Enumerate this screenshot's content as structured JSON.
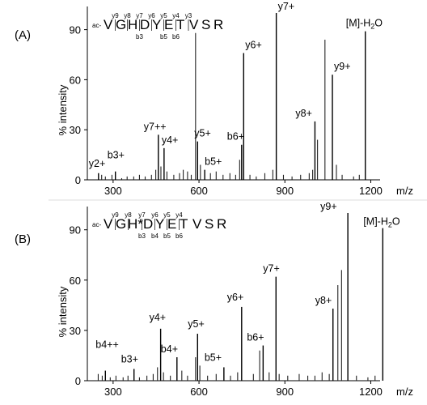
{
  "chart_data": [
    {
      "type": "bar",
      "panel_label": "(A)",
      "ylabel": "% intensity",
      "x_unit": "m/z",
      "xlim": [
        210,
        1290
      ],
      "ylim": [
        0,
        100
      ],
      "xticks": [
        300,
        600,
        900,
        1200
      ],
      "yticks": [
        0,
        30,
        60,
        90
      ],
      "sequence": {
        "prefix": "ac-",
        "residues": [
          "V",
          "G",
          "H",
          "D",
          "Y",
          "E",
          "T",
          "V",
          "S",
          "R"
        ],
        "y_ions": [
          "y9",
          "y8",
          "y7",
          "y6",
          "y5",
          "y4",
          "y3"
        ],
        "b_ions": [
          "b3",
          "b5",
          "b6"
        ]
      },
      "labeled_peaks": [
        {
          "label": "y2+",
          "mz": 249,
          "intensity": 4
        },
        {
          "label": "b3+",
          "mz": 308,
          "intensity": 5
        },
        {
          "label": "y7++",
          "mz": 458,
          "intensity": 27
        },
        {
          "label": "y4+",
          "mz": 478,
          "intensity": 19
        },
        {
          "label": "y5+",
          "mz": 595,
          "intensity": 23
        },
        {
          "label": "b5+",
          "mz": 620,
          "intensity": 6
        },
        {
          "label": "b6+",
          "mz": 749,
          "intensity": 21
        },
        {
          "label": "y6+",
          "mz": 756,
          "intensity": 76
        },
        {
          "label": "y7+",
          "mz": 870,
          "intensity": 100
        },
        {
          "label": "y8+",
          "mz": 1005,
          "intensity": 35
        },
        {
          "label": "y9+",
          "mz": 1066,
          "intensity": 63
        },
        {
          "label": "[M]-H2O",
          "mz": 1181,
          "intensity": 89
        }
      ],
      "other_peaks": [
        {
          "mz": 260,
          "intensity": 3
        },
        {
          "mz": 273,
          "intensity": 2
        },
        {
          "mz": 296,
          "intensity": 3
        },
        {
          "mz": 330,
          "intensity": 1
        },
        {
          "mz": 349,
          "intensity": 2
        },
        {
          "mz": 372,
          "intensity": 2
        },
        {
          "mz": 392,
          "intensity": 3
        },
        {
          "mz": 412,
          "intensity": 2
        },
        {
          "mz": 434,
          "intensity": 3
        },
        {
          "mz": 449,
          "intensity": 6
        },
        {
          "mz": 467,
          "intensity": 8
        },
        {
          "mz": 488,
          "intensity": 5
        },
        {
          "mz": 512,
          "intensity": 3
        },
        {
          "mz": 532,
          "intensity": 4
        },
        {
          "mz": 545,
          "intensity": 6
        },
        {
          "mz": 560,
          "intensity": 5
        },
        {
          "mz": 573,
          "intensity": 3
        },
        {
          "mz": 588,
          "intensity": 88
        },
        {
          "mz": 605,
          "intensity": 9
        },
        {
          "mz": 640,
          "intensity": 4
        },
        {
          "mz": 660,
          "intensity": 5
        },
        {
          "mz": 684,
          "intensity": 3
        },
        {
          "mz": 708,
          "intensity": 4
        },
        {
          "mz": 728,
          "intensity": 3
        },
        {
          "mz": 742,
          "intensity": 12
        },
        {
          "mz": 778,
          "intensity": 3
        },
        {
          "mz": 800,
          "intensity": 2
        },
        {
          "mz": 830,
          "intensity": 4
        },
        {
          "mz": 858,
          "intensity": 6
        },
        {
          "mz": 895,
          "intensity": 3
        },
        {
          "mz": 925,
          "intensity": 2
        },
        {
          "mz": 955,
          "intensity": 3
        },
        {
          "mz": 985,
          "intensity": 4
        },
        {
          "mz": 997,
          "intensity": 6
        },
        {
          "mz": 1014,
          "intensity": 24
        },
        {
          "mz": 1040,
          "intensity": 84
        },
        {
          "mz": 1080,
          "intensity": 9
        },
        {
          "mz": 1100,
          "intensity": 3
        },
        {
          "mz": 1140,
          "intensity": 2
        },
        {
          "mz": 1160,
          "intensity": 3
        }
      ]
    },
    {
      "type": "bar",
      "panel_label": "(B)",
      "ylabel": "% intensity",
      "x_unit": "m/z",
      "xlim": [
        210,
        1290
      ],
      "ylim": [
        0,
        100
      ],
      "xticks": [
        300,
        600,
        900,
        1200
      ],
      "yticks": [
        0,
        30,
        60,
        90
      ],
      "sequence": {
        "prefix": "ac-",
        "residues": [
          "V",
          "G",
          "H*",
          "D",
          "Y",
          "E",
          "T",
          "V",
          "S",
          "R"
        ],
        "y_ions": [
          "y9",
          "y8",
          "y7",
          "y6",
          "y5",
          "y4"
        ],
        "b_ions": [
          "b3",
          "b4",
          "b5",
          "b6"
        ]
      },
      "labeled_peaks": [
        {
          "label": "b4++",
          "mz": 273,
          "intensity": 6
        },
        {
          "label": "b3+",
          "mz": 373,
          "intensity": 7
        },
        {
          "label": "y4+",
          "mz": 466,
          "intensity": 31
        },
        {
          "label": "b4+",
          "mz": 523,
          "intensity": 14
        },
        {
          "label": "y5+",
          "mz": 595,
          "intensity": 28
        },
        {
          "label": "b5+",
          "mz": 687,
          "intensity": 8
        },
        {
          "label": "y6+",
          "mz": 749,
          "intensity": 44
        },
        {
          "label": "b6+",
          "mz": 824,
          "intensity": 21
        },
        {
          "label": "y7+",
          "mz": 869,
          "intensity": 62
        },
        {
          "label": "y8+",
          "mz": 1068,
          "intensity": 43
        },
        {
          "label": "y9+",
          "mz": 1120,
          "intensity": 100
        },
        {
          "label": "[M]-H2O",
          "mz": 1242,
          "intensity": 91
        }
      ],
      "other_peaks": [
        {
          "mz": 248,
          "intensity": 4
        },
        {
          "mz": 262,
          "intensity": 3
        },
        {
          "mz": 290,
          "intensity": 2
        },
        {
          "mz": 310,
          "intensity": 3
        },
        {
          "mz": 335,
          "intensity": 2
        },
        {
          "mz": 352,
          "intensity": 3
        },
        {
          "mz": 392,
          "intensity": 2
        },
        {
          "mz": 418,
          "intensity": 3
        },
        {
          "mz": 440,
          "intensity": 4
        },
        {
          "mz": 455,
          "intensity": 8
        },
        {
          "mz": 476,
          "intensity": 5
        },
        {
          "mz": 500,
          "intensity": 3
        },
        {
          "mz": 540,
          "intensity": 6
        },
        {
          "mz": 560,
          "intensity": 3
        },
        {
          "mz": 588,
          "intensity": 14
        },
        {
          "mz": 603,
          "intensity": 9
        },
        {
          "mz": 630,
          "intensity": 3
        },
        {
          "mz": 660,
          "intensity": 4
        },
        {
          "mz": 710,
          "intensity": 3
        },
        {
          "mz": 735,
          "intensity": 5
        },
        {
          "mz": 790,
          "intensity": 4
        },
        {
          "mz": 812,
          "intensity": 18
        },
        {
          "mz": 845,
          "intensity": 5
        },
        {
          "mz": 880,
          "intensity": 4
        },
        {
          "mz": 910,
          "intensity": 3
        },
        {
          "mz": 950,
          "intensity": 4
        },
        {
          "mz": 980,
          "intensity": 3
        },
        {
          "mz": 1005,
          "intensity": 3
        },
        {
          "mz": 1030,
          "intensity": 5
        },
        {
          "mz": 1055,
          "intensity": 4
        },
        {
          "mz": 1085,
          "intensity": 57
        },
        {
          "mz": 1098,
          "intensity": 66
        },
        {
          "mz": 1150,
          "intensity": 3
        },
        {
          "mz": 1190,
          "intensity": 2
        },
        {
          "mz": 1215,
          "intensity": 3
        }
      ]
    }
  ]
}
